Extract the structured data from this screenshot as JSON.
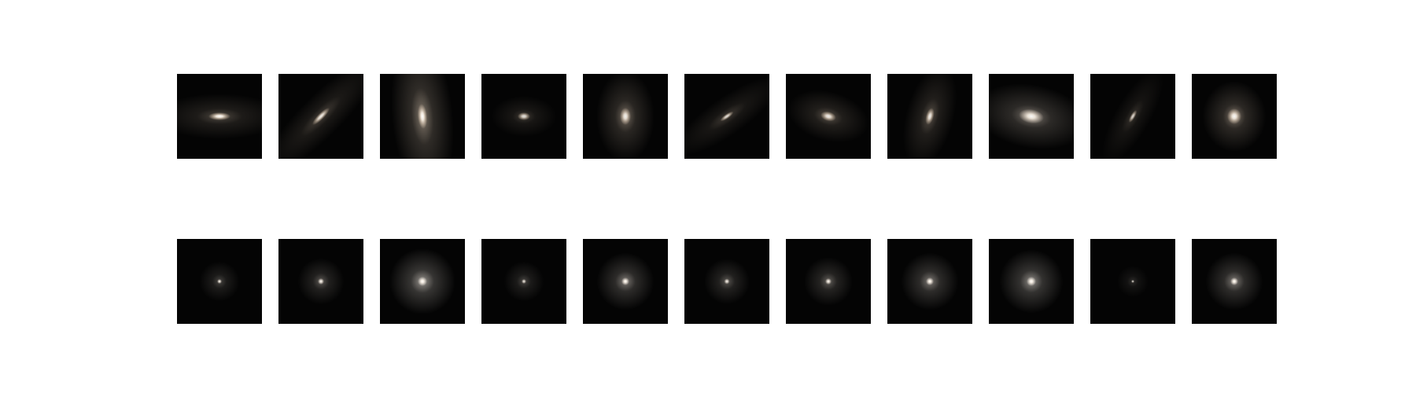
{
  "figure": {
    "rows": [
      {
        "name": "elliptical-row",
        "galaxies": [
          {
            "rx": 14,
            "ry": 5,
            "rot": 0,
            "intensity": 1.0,
            "halo": 0.9,
            "tint": "#f1dcc4"
          },
          {
            "rx": 15,
            "ry": 4,
            "rot": -45,
            "intensity": 0.9,
            "halo": 0.8,
            "tint": "#eed8bf"
          },
          {
            "rx": 6,
            "ry": 16,
            "rot": -5,
            "intensity": 1.0,
            "halo": 1.5,
            "tint": "#f3dfc8"
          },
          {
            "rx": 8,
            "ry": 5,
            "rot": 0,
            "intensity": 0.85,
            "halo": 0.7,
            "tint": "#f0dbc2"
          },
          {
            "rx": 7,
            "ry": 11,
            "rot": 0,
            "intensity": 0.9,
            "halo": 1.3,
            "tint": "#f2ddc6"
          },
          {
            "rx": 10,
            "ry": 3,
            "rot": -35,
            "intensity": 0.85,
            "halo": 0.7,
            "tint": "#eed8bf"
          },
          {
            "rx": 10,
            "ry": 6,
            "rot": 15,
            "intensity": 0.9,
            "halo": 1.0,
            "tint": "#f2dcc3"
          },
          {
            "rx": 5,
            "ry": 11,
            "rot": 15,
            "intensity": 0.9,
            "halo": 1.0,
            "tint": "#efd9c1"
          },
          {
            "rx": 16,
            "ry": 9,
            "rot": 10,
            "intensity": 0.95,
            "halo": 1.4,
            "tint": "#f4e6d6"
          },
          {
            "rx": 3,
            "ry": 9,
            "rot": 30,
            "intensity": 0.8,
            "halo": 0.6,
            "tint": "#eed8bf"
          },
          {
            "rx": 9,
            "ry": 10,
            "rot": 0,
            "intensity": 0.95,
            "halo": 1.4,
            "tint": "#f3dec7"
          }
        ]
      },
      {
        "name": "point-source-row",
        "galaxies": [
          {
            "rx": 3,
            "ry": 3,
            "rot": 0,
            "intensity": 0.9,
            "halo": 0.8,
            "tint": "#f6ece0"
          },
          {
            "rx": 4,
            "ry": 4,
            "rot": 0,
            "intensity": 0.95,
            "halo": 1.0,
            "tint": "#f6ece0"
          },
          {
            "rx": 6,
            "ry": 6,
            "rot": 0,
            "intensity": 1.0,
            "halo": 1.7,
            "tint": "#f8f1e8"
          },
          {
            "rx": 3,
            "ry": 3,
            "rot": 0,
            "intensity": 0.85,
            "halo": 0.8,
            "tint": "#f6ece0"
          },
          {
            "rx": 5,
            "ry": 5,
            "rot": 0,
            "intensity": 1.0,
            "halo": 1.4,
            "tint": "#f7eee4"
          },
          {
            "rx": 3.5,
            "ry": 3.5,
            "rot": 0,
            "intensity": 0.9,
            "halo": 1.0,
            "tint": "#f6ece0"
          },
          {
            "rx": 4,
            "ry": 4,
            "rot": 0,
            "intensity": 0.95,
            "halo": 1.1,
            "tint": "#f6ece0"
          },
          {
            "rx": 5,
            "ry": 5,
            "rot": 0,
            "intensity": 1.0,
            "halo": 1.4,
            "tint": "#f7eee4"
          },
          {
            "rx": 6,
            "ry": 6,
            "rot": 0,
            "intensity": 1.0,
            "halo": 1.6,
            "tint": "#f8f1e8"
          },
          {
            "rx": 2,
            "ry": 2,
            "rot": 0,
            "intensity": 0.8,
            "halo": 0.5,
            "tint": "#f6ece0"
          },
          {
            "rx": 5,
            "ry": 5,
            "rot": 0,
            "intensity": 1.0,
            "halo": 1.4,
            "tint": "#f7eee4"
          }
        ]
      }
    ],
    "background_color": "#040404"
  }
}
